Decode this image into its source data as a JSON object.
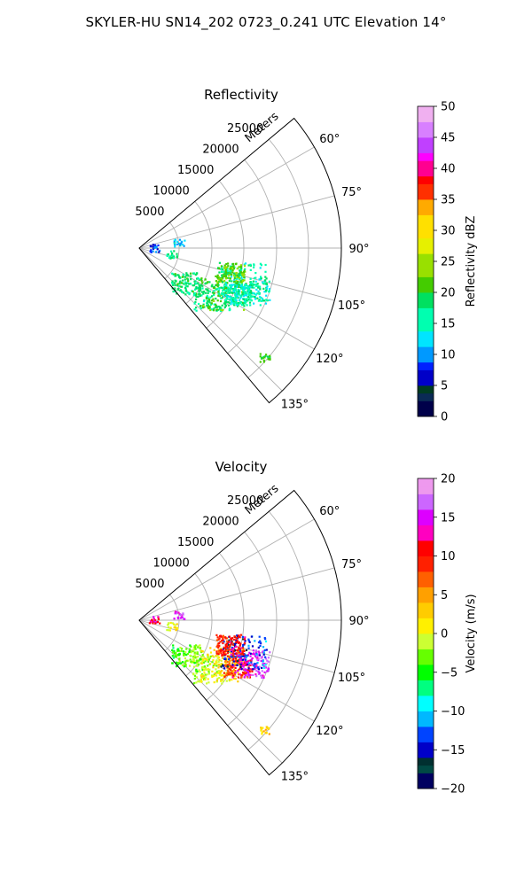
{
  "figure": {
    "title": "SKYLER-HU  SN14_202  0723_0.241 UTC Elevation 14°"
  },
  "chart_data": [
    {
      "type": "polar-sector",
      "title": "Reflectivity",
      "radial_label": "Meters",
      "radial_ticks": [
        5000,
        10000,
        15000,
        20000,
        25000
      ],
      "radial_max": 28000,
      "theta_range_deg": [
        50,
        140
      ],
      "theta_ticks": [
        "60°",
        "75°",
        "90°",
        "105°",
        "120°",
        "135°"
      ],
      "theta_tick_values": [
        60,
        75,
        90,
        105,
        120,
        135
      ],
      "colorbar": {
        "label": "Reflectivity dBZ",
        "range": [
          0,
          50
        ],
        "ticks": [
          "0",
          "5",
          "10",
          "15",
          "20",
          "25",
          "30",
          "35",
          "40",
          "45",
          "50"
        ],
        "tick_values": [
          0,
          5,
          10,
          15,
          20,
          25,
          30,
          35,
          40,
          45,
          50
        ]
      },
      "echo_regions": [
        {
          "theta": 127,
          "r": 8000,
          "value": 18
        },
        {
          "theta": 124,
          "r": 12000,
          "value": 17
        },
        {
          "theta": 118,
          "r": 13000,
          "value": 21
        },
        {
          "theta": 115,
          "r": 15000,
          "value": 16
        },
        {
          "theta": 111,
          "r": 16500,
          "value": 15
        },
        {
          "theta": 107,
          "r": 15000,
          "value": 16
        },
        {
          "theta": 105,
          "r": 13000,
          "value": 22
        },
        {
          "theta": 131,
          "r": 23000,
          "value": 20
        },
        {
          "theta": 88,
          "r": 2000,
          "value": 8
        },
        {
          "theta": 100,
          "r": 4500,
          "value": 18
        },
        {
          "theta": 82,
          "r": 5500,
          "value": 12
        }
      ]
    },
    {
      "type": "polar-sector",
      "title": "Velocity",
      "radial_label": "Meters",
      "radial_ticks": [
        5000,
        10000,
        15000,
        20000,
        25000
      ],
      "radial_max": 28000,
      "theta_range_deg": [
        50,
        140
      ],
      "theta_ticks": [
        "60°",
        "75°",
        "90°",
        "105°",
        "120°",
        "135°"
      ],
      "theta_tick_values": [
        60,
        75,
        90,
        105,
        120,
        135
      ],
      "colorbar": {
        "label": "Velocity (m/s)",
        "range": [
          -20,
          20
        ],
        "ticks": [
          "−20",
          "−15",
          "−10",
          "−5",
          "0",
          "5",
          "10",
          "15",
          "20"
        ],
        "tick_values": [
          -20,
          -15,
          -10,
          -5,
          0,
          5,
          10,
          15,
          20
        ]
      },
      "echo_regions": [
        {
          "theta": 127,
          "r": 8000,
          "value": -3
        },
        {
          "theta": 124,
          "r": 12000,
          "value": -1
        },
        {
          "theta": 118,
          "r": 13000,
          "value": 2
        },
        {
          "theta": 115,
          "r": 15000,
          "value": 9
        },
        {
          "theta": 111,
          "r": 16500,
          "value": 15
        },
        {
          "theta": 107,
          "r": 15000,
          "value": -14
        },
        {
          "theta": 105,
          "r": 13000,
          "value": 10
        },
        {
          "theta": 131,
          "r": 23000,
          "value": 3
        },
        {
          "theta": 88,
          "r": 2000,
          "value": 12
        },
        {
          "theta": 100,
          "r": 4500,
          "value": 1
        },
        {
          "theta": 82,
          "r": 5500,
          "value": 15
        }
      ]
    }
  ]
}
